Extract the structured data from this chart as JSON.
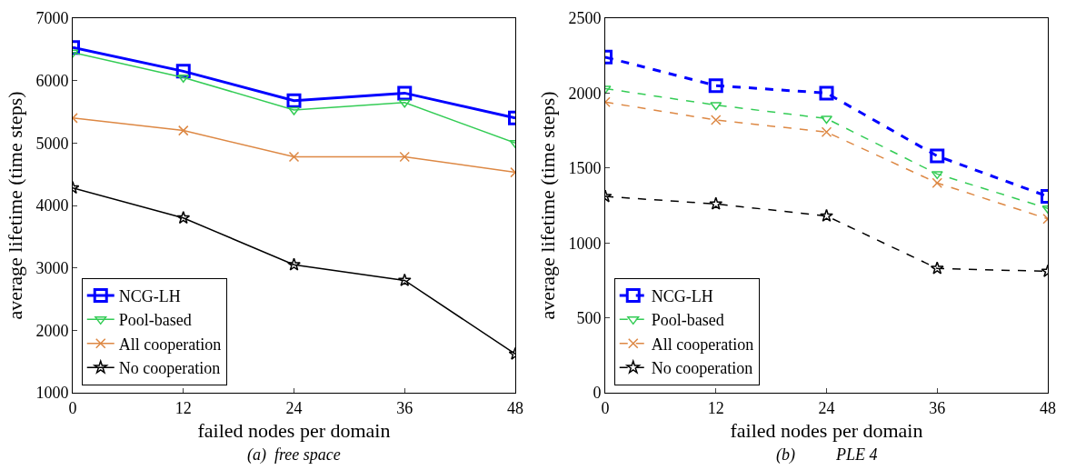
{
  "chart_data": [
    {
      "type": "line",
      "xlabel": "failed nodes per domain",
      "ylabel": "average lifetime (time steps)",
      "annotations": [
        "(a)  free space"
      ],
      "x": [
        0,
        12,
        24,
        36,
        48
      ],
      "xlim": [
        0,
        48
      ],
      "xticks": [
        0,
        12,
        24,
        36,
        48
      ],
      "ylim": [
        1000,
        7000
      ],
      "yticks": [
        1000,
        2000,
        3000,
        4000,
        5000,
        6000,
        7000
      ],
      "grid": false,
      "legend": "bottom left",
      "line_style": "solid",
      "series": [
        {
          "name": "NCG-LH",
          "color": "#0000ff",
          "marker": "square",
          "values": [
            6530,
            6150,
            5680,
            5800,
            5400
          ]
        },
        {
          "name": "Pool-based",
          "color": "#33cc55",
          "marker": "triangle",
          "values": [
            6450,
            6050,
            5530,
            5650,
            5000
          ]
        },
        {
          "name": "All cooperation",
          "color": "#dd8844",
          "marker": "cross",
          "values": [
            5400,
            5200,
            4780,
            4780,
            4530
          ]
        },
        {
          "name": "No cooperation",
          "color": "#000000",
          "marker": "star",
          "values": [
            4280,
            3800,
            3050,
            2800,
            1620
          ]
        }
      ]
    },
    {
      "type": "line",
      "xlabel": "failed nodes per domain",
      "ylabel": "average lifetime (time steps)",
      "annotations": [
        "(b)          PLE 4"
      ],
      "x": [
        0,
        12,
        24,
        36,
        48
      ],
      "xlim": [
        0,
        48
      ],
      "xticks": [
        0,
        12,
        24,
        36,
        48
      ],
      "ylim": [
        0,
        2500
      ],
      "yticks": [
        0,
        500,
        1000,
        1500,
        2000,
        2500
      ],
      "grid": false,
      "legend": "bottom left",
      "line_style": "dashed",
      "series": [
        {
          "name": "NCG-LH",
          "color": "#0000ff",
          "marker": "square",
          "values": [
            2240,
            2050,
            2000,
            1580,
            1310
          ]
        },
        {
          "name": "Pool-based",
          "color": "#33cc55",
          "marker": "triangle",
          "values": [
            2030,
            1920,
            1830,
            1460,
            1230
          ]
        },
        {
          "name": "All cooperation",
          "color": "#dd8844",
          "marker": "cross",
          "values": [
            1940,
            1820,
            1740,
            1400,
            1160
          ]
        },
        {
          "name": "No cooperation",
          "color": "#000000",
          "marker": "star",
          "values": [
            1310,
            1260,
            1180,
            830,
            810
          ]
        }
      ]
    }
  ]
}
